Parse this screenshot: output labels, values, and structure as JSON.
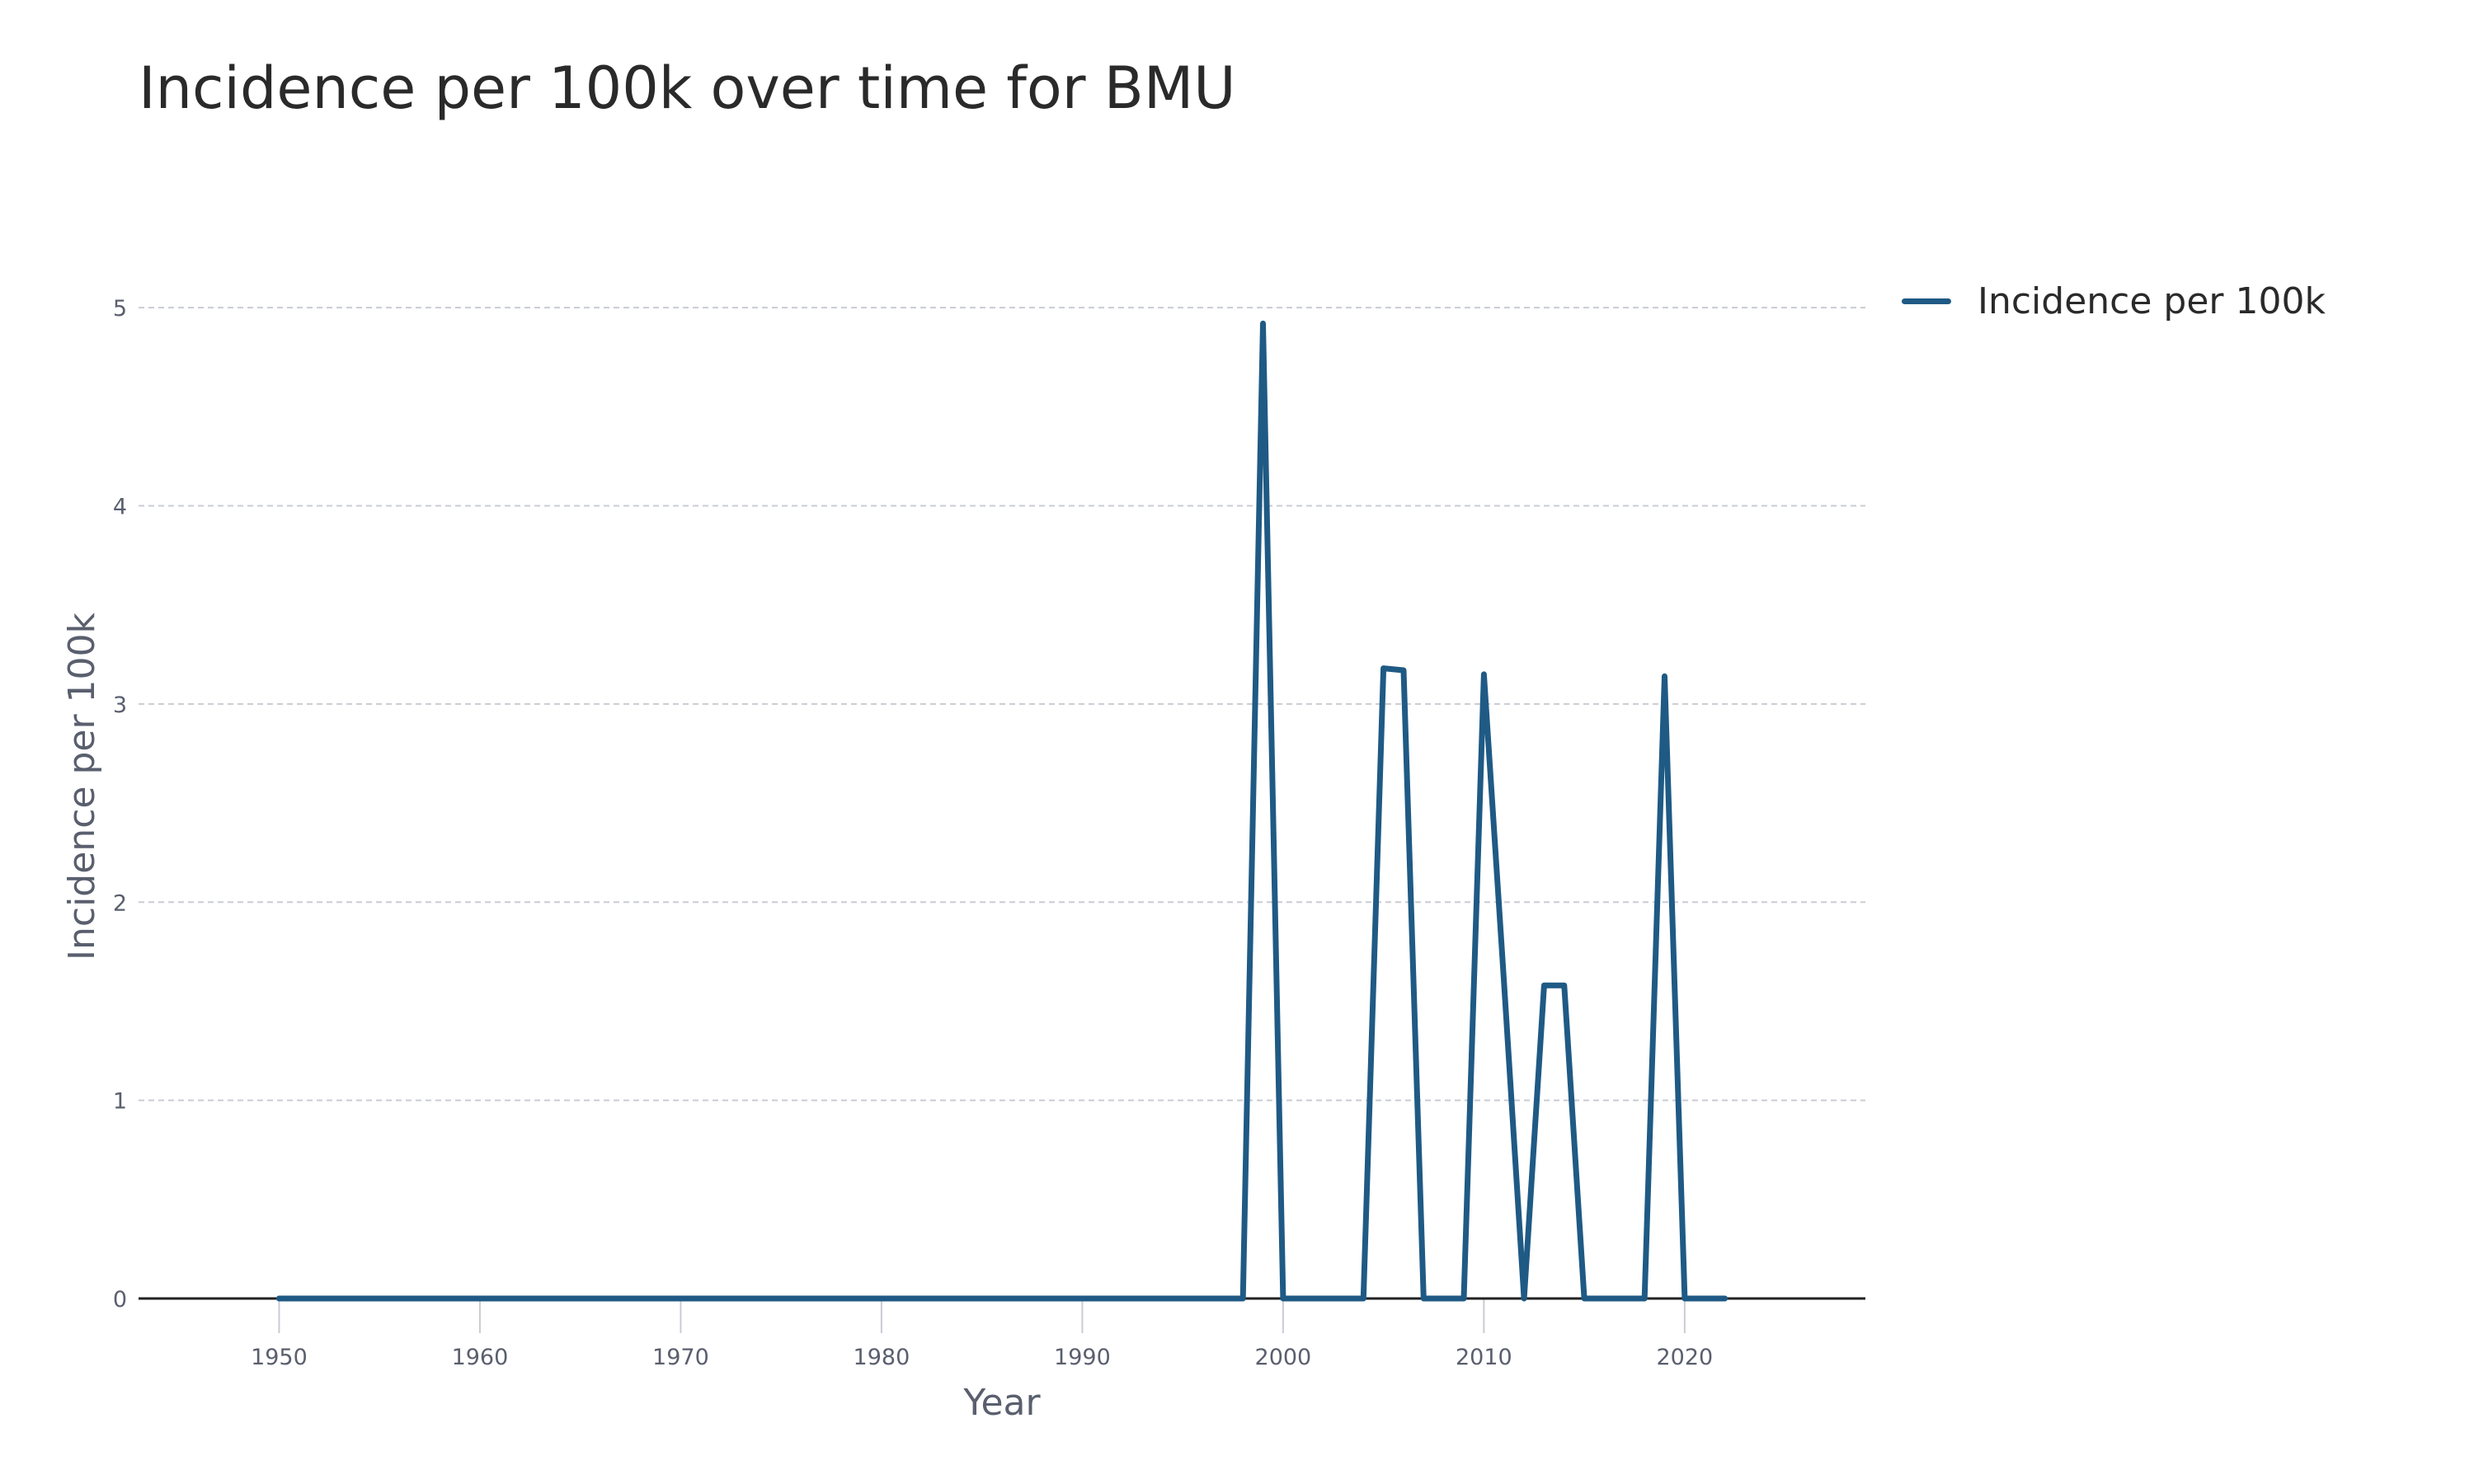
{
  "chart_data": {
    "type": "line",
    "title": "Incidence per 100k over time for BMU",
    "xlabel": "Year",
    "ylabel": "Incidence per 100k",
    "xlim": [
      1943,
      2029
    ],
    "ylim": [
      0,
      5.5
    ],
    "x_ticks": [
      1950,
      1960,
      1970,
      1980,
      1990,
      2000,
      2010,
      2020
    ],
    "y_ticks": [
      0,
      1,
      2,
      3,
      4,
      5
    ],
    "grid": true,
    "legend_position": "top-right",
    "series": [
      {
        "name": "Incidence per 100k",
        "color": "#1f5a85",
        "x": [
          1950,
          1951,
          1952,
          1953,
          1954,
          1955,
          1956,
          1957,
          1958,
          1959,
          1960,
          1961,
          1962,
          1963,
          1964,
          1965,
          1966,
          1967,
          1968,
          1969,
          1970,
          1971,
          1972,
          1973,
          1974,
          1975,
          1976,
          1977,
          1978,
          1979,
          1980,
          1981,
          1982,
          1983,
          1984,
          1985,
          1986,
          1987,
          1988,
          1989,
          1990,
          1991,
          1992,
          1993,
          1994,
          1995,
          1996,
          1997,
          1998,
          1999,
          2000,
          2001,
          2002,
          2003,
          2004,
          2005,
          2006,
          2007,
          2008,
          2009,
          2010,
          2011,
          2012,
          2013,
          2014,
          2015,
          2016,
          2017,
          2018,
          2019,
          2020,
          2021,
          2022
        ],
        "values": [
          0,
          0,
          0,
          0,
          0,
          0,
          0,
          0,
          0,
          0,
          0,
          0,
          0,
          0,
          0,
          0,
          0,
          0,
          0,
          0,
          0,
          0,
          0,
          0,
          0,
          0,
          0,
          0,
          0,
          0,
          0,
          0,
          0,
          0,
          0,
          0,
          0,
          0,
          0,
          0,
          0,
          0,
          0,
          0,
          0,
          0,
          0,
          0,
          0,
          4.92,
          0,
          0,
          0,
          0,
          0,
          3.18,
          3.17,
          0,
          0,
          0,
          3.15,
          1.6,
          0,
          1.58,
          1.58,
          0,
          0,
          0,
          0,
          3.14,
          0,
          0,
          0
        ]
      }
    ]
  }
}
